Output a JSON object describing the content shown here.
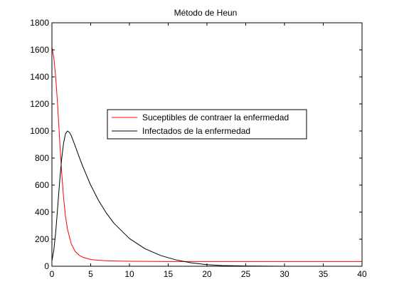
{
  "chart_data": {
    "type": "line",
    "title": "Método de Heun",
    "xlabel": "",
    "ylabel": "",
    "xlim": [
      0,
      40
    ],
    "ylim": [
      0,
      1800
    ],
    "xticks": [
      "0",
      "5",
      "10",
      "15",
      "20",
      "25",
      "30",
      "35",
      "40"
    ],
    "yticks": [
      "0",
      "200",
      "400",
      "600",
      "800",
      "1000",
      "1200",
      "1400",
      "1600",
      "1800"
    ],
    "grid": false,
    "legend_position": "center",
    "series": [
      {
        "name": "Suceptibles de contraer la enfermedad",
        "color": "#ff0000",
        "x": [
          0,
          0.25,
          0.5,
          0.75,
          1,
          1.25,
          1.5,
          1.75,
          2,
          2.5,
          3,
          3.5,
          4,
          5,
          6,
          7,
          8,
          10,
          12,
          15,
          20,
          25,
          30,
          35,
          40
        ],
        "y": [
          1620,
          1540,
          1390,
          1180,
          930,
          700,
          510,
          370,
          275,
          165,
          110,
          82,
          66,
          50,
          44,
          41,
          39,
          37,
          36,
          35,
          35,
          35,
          35,
          35,
          35
        ]
      },
      {
        "name": "Infectados de la enfermedad",
        "color": "#000000",
        "x": [
          0,
          0.25,
          0.5,
          0.75,
          1,
          1.25,
          1.5,
          1.75,
          2,
          2.25,
          2.5,
          3,
          3.5,
          4,
          5,
          6,
          7,
          8,
          10,
          12,
          14,
          16,
          18,
          20,
          22,
          25,
          30,
          35,
          40
        ],
        "y": [
          40,
          120,
          260,
          440,
          630,
          790,
          910,
          980,
          1000,
          990,
          965,
          890,
          810,
          735,
          600,
          488,
          395,
          318,
          205,
          130,
          80,
          47,
          25,
          12,
          5,
          2,
          0,
          0,
          0
        ]
      }
    ]
  }
}
